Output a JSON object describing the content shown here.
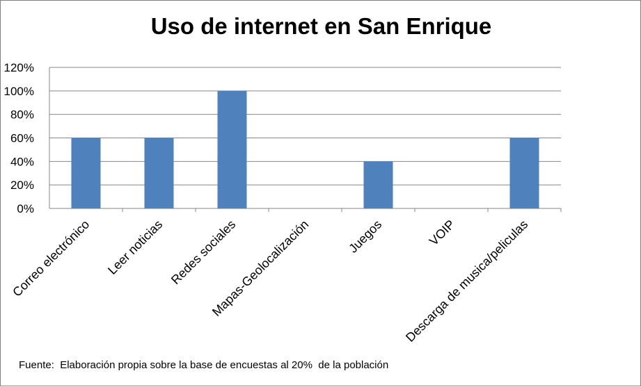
{
  "chart_data": {
    "type": "bar",
    "title": "Uso de internet en San Enrique",
    "categories": [
      "Correo electrónico",
      "Leer noticias",
      "Redes sociales",
      "Mapas-Geolocalización",
      "Juegos",
      "VOIP",
      "Descarga de musica/peliculas"
    ],
    "values": [
      60,
      60,
      100,
      0,
      40,
      0,
      60
    ],
    "ylim": [
      0,
      120
    ],
    "yticks": [
      "0%",
      "20%",
      "40%",
      "60%",
      "80%",
      "100%",
      "120%"
    ],
    "grid": true,
    "bar_color": "#4f81bd",
    "grid_color": "#868686"
  },
  "footer": {
    "source": "Fuente:  Elaboración propia sobre la base de encuestas al 20%  de la población"
  }
}
